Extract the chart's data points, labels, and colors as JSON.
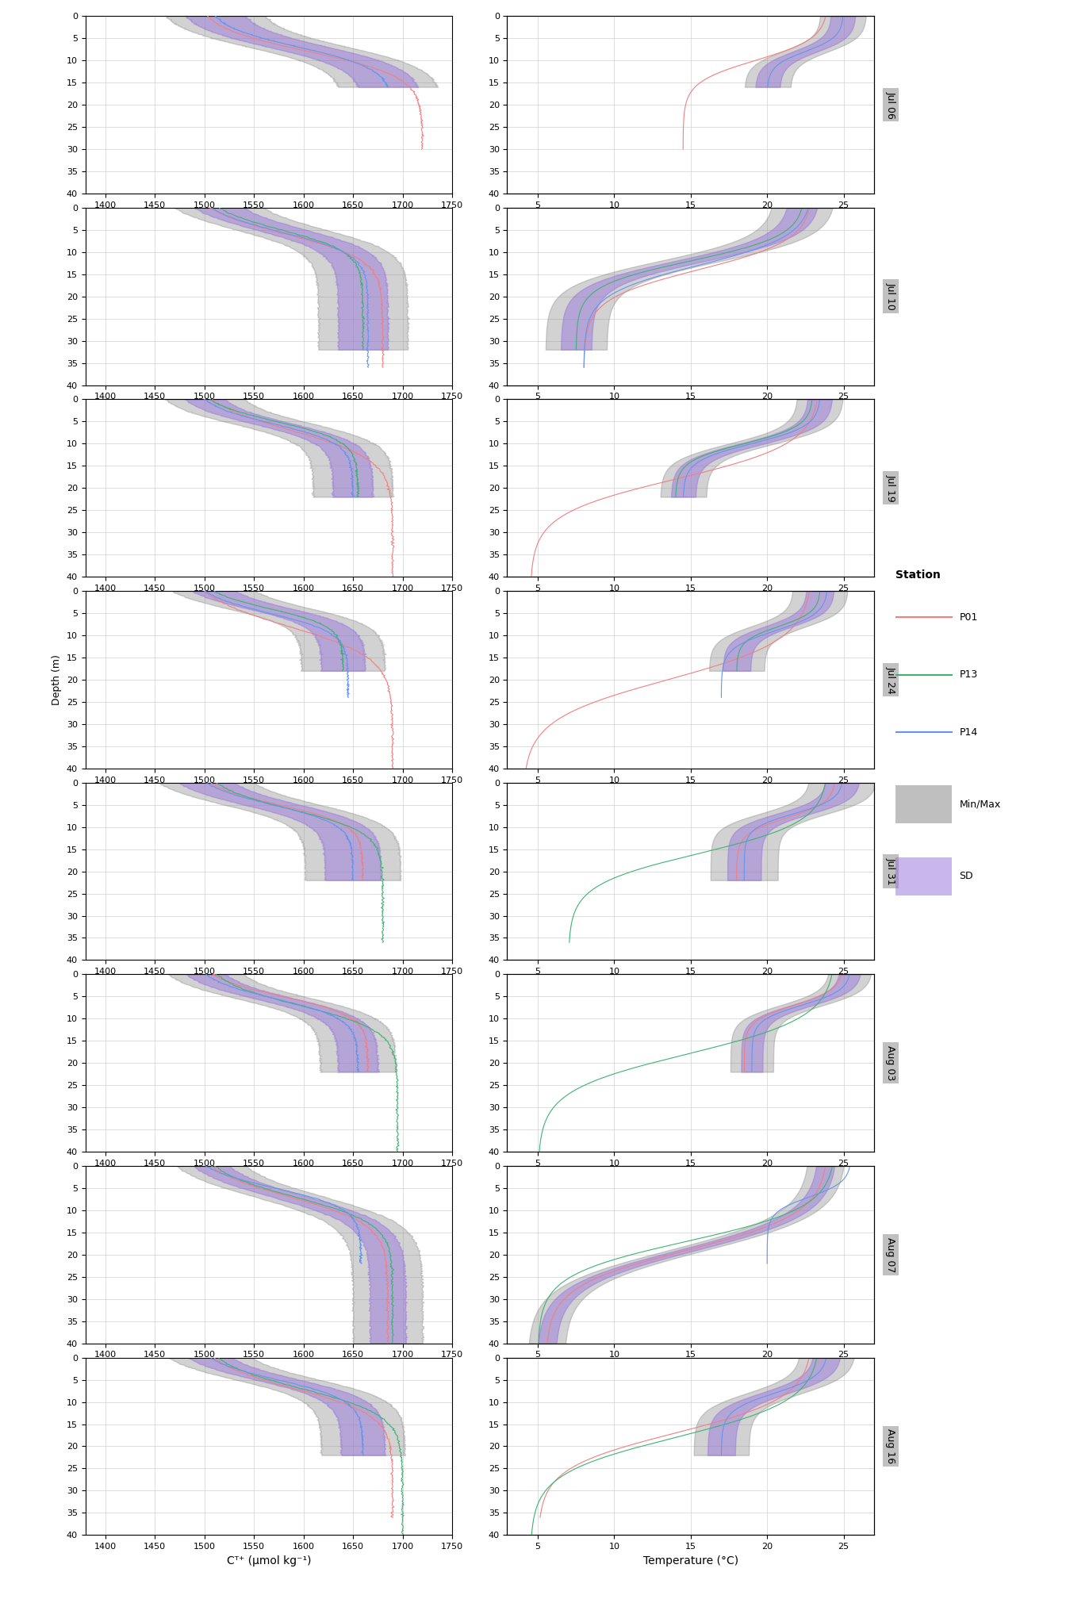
{
  "cruise_days": [
    "Jul 06",
    "Jul 10",
    "Jul 19",
    "Jul 24",
    "Jul 31",
    "Aug 03",
    "Aug 07",
    "Aug 16"
  ],
  "stations": [
    "P01",
    "P13",
    "P14"
  ],
  "station_colors": {
    "P01": "#f08080",
    "P13": "#3cb371",
    "P14": "#6495ed"
  },
  "sd_color": "#9370db",
  "minmax_color": "#808080",
  "sd_alpha": 0.45,
  "minmax_alpha": 0.35,
  "depth_range": [
    0,
    40
  ],
  "ct_range": [
    1380,
    1750
  ],
  "temp_range": [
    3,
    27
  ],
  "ylabel": "Depth (m)",
  "xlabel_ct": "Cᵀ⁺ (µmol kg⁻¹)",
  "xlabel_temp": "Temperature (°C)",
  "background_color": "#f0f0f0",
  "panel_color": "#ffffff",
  "grid_color": "#d0d0d0"
}
